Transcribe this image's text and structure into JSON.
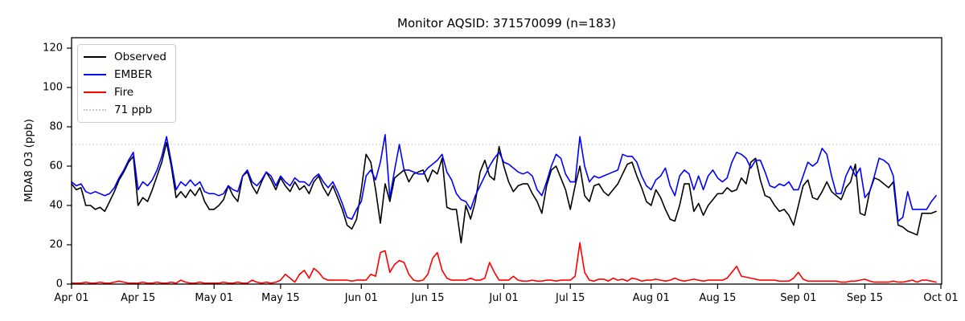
{
  "figure": {
    "title": "Monitor AQSID: 371570099 (n=183)"
  },
  "chart_data": {
    "type": "line",
    "title": "Monitor AQSID: 371570099 (n=183)",
    "xlabel": "",
    "ylabel": "MDA8 O3 (ppb)",
    "ylim": [
      0,
      125
    ],
    "yticks": [
      0,
      20,
      40,
      60,
      80,
      100,
      120
    ],
    "x_tick_labels": [
      "Apr 01",
      "Apr 15",
      "May 01",
      "May 15",
      "Jun 01",
      "Jun 15",
      "Jul 01",
      "Jul 15",
      "Aug 01",
      "Aug 15",
      "Sep 01",
      "Sep 15",
      "Oct 01"
    ],
    "x_tick_positions": [
      0,
      14,
      30,
      44,
      61,
      75,
      91,
      105,
      122,
      136,
      153,
      167,
      183
    ],
    "n_days": 183,
    "grid": false,
    "legend_position": "upper left",
    "threshold": {
      "label": "71 ppb",
      "value": 71,
      "color": "#d3d3d3",
      "style": "dotted"
    },
    "legend": [
      {
        "label": "Observed",
        "color": "#000000",
        "style": "solid"
      },
      {
        "label": "EMBER",
        "color": "#0000ff",
        "style": "solid"
      },
      {
        "label": "Fire",
        "color": "#ff0000",
        "style": "solid"
      },
      {
        "label": "71 ppb",
        "color": "#c9c9c9",
        "style": "dotted"
      }
    ],
    "series": [
      {
        "name": "Observed",
        "color": "#000000",
        "values": [
          51,
          48,
          49,
          40,
          40,
          38,
          39,
          37,
          42,
          47,
          53,
          57,
          62,
          65,
          40,
          44,
          42,
          48,
          55,
          62,
          72,
          60,
          44,
          47,
          44,
          48,
          45,
          49,
          42,
          38,
          38,
          40,
          43,
          50,
          45,
          42,
          55,
          57,
          50,
          46,
          52,
          57,
          53,
          48,
          54,
          50,
          47,
          52,
          48,
          50,
          46,
          52,
          55,
          49,
          45,
          50,
          44,
          38,
          30,
          28,
          33,
          48,
          66,
          62,
          48,
          31,
          51,
          42,
          54,
          56,
          58,
          52,
          56,
          57,
          58,
          52,
          58,
          56,
          64,
          39,
          38,
          38,
          21,
          40,
          33,
          42,
          57,
          63,
          55,
          53,
          70,
          60,
          52,
          47,
          50,
          51,
          51,
          46,
          42,
          36,
          50,
          58,
          60,
          54,
          48,
          38,
          50,
          60,
          45,
          42,
          50,
          51,
          47,
          45,
          48,
          51,
          56,
          61,
          62,
          55,
          49,
          42,
          40,
          48,
          44,
          38,
          33,
          32,
          40,
          51,
          51,
          37,
          41,
          35,
          40,
          43,
          46,
          46,
          49,
          47,
          48,
          54,
          51,
          62,
          64,
          53,
          45,
          44,
          40,
          37,
          38,
          35,
          30,
          40,
          50,
          53,
          44,
          43,
          47,
          52,
          47,
          45,
          43,
          49,
          52,
          61,
          36,
          35,
          47,
          54,
          53,
          51,
          49,
          52,
          30,
          29,
          27,
          26,
          25,
          36,
          36,
          36,
          37
        ]
      },
      {
        "name": "EMBER",
        "color": "#0000ff",
        "values": [
          52,
          50,
          51,
          47,
          46,
          47,
          46,
          45,
          46,
          49,
          54,
          58,
          63,
          67,
          48,
          52,
          50,
          53,
          58,
          65,
          75,
          62,
          48,
          52,
          50,
          53,
          50,
          52,
          47,
          46,
          46,
          45,
          46,
          50,
          48,
          47,
          55,
          58,
          52,
          50,
          53,
          57,
          55,
          50,
          55,
          52,
          50,
          54,
          52,
          52,
          50,
          54,
          56,
          52,
          49,
          52,
          47,
          41,
          34,
          33,
          38,
          42,
          55,
          58,
          53,
          62,
          76,
          44,
          58,
          71,
          58,
          58,
          57,
          56,
          56,
          59,
          61,
          63,
          66,
          57,
          53,
          46,
          43,
          42,
          38,
          45,
          50,
          55,
          60,
          64,
          67,
          62,
          61,
          59,
          57,
          56,
          57,
          55,
          48,
          45,
          52,
          60,
          66,
          64,
          56,
          52,
          52,
          75,
          60,
          52,
          55,
          54,
          55,
          56,
          57,
          58,
          66,
          65,
          65,
          62,
          55,
          50,
          48,
          53,
          55,
          59,
          50,
          45,
          55,
          58,
          56,
          48,
          55,
          48,
          55,
          58,
          54,
          52,
          54,
          62,
          67,
          66,
          64,
          59,
          63,
          63,
          57,
          50,
          49,
          51,
          50,
          52,
          48,
          48,
          55,
          62,
          60,
          62,
          69,
          66,
          55,
          46,
          46,
          55,
          60,
          55,
          59,
          44,
          47,
          55,
          64,
          63,
          61,
          55,
          32,
          34,
          47,
          38,
          38,
          38,
          38,
          42,
          45
        ]
      },
      {
        "name": "Fire",
        "color": "#ff0000",
        "values": [
          0.5,
          0.5,
          0.5,
          1,
          0.5,
          0.5,
          1,
          0.5,
          0.5,
          1,
          1.5,
          1,
          0.5,
          0.5,
          0.5,
          1,
          0.5,
          0.5,
          1,
          0.5,
          0.5,
          1,
          0.5,
          2,
          1,
          0.5,
          0.5,
          1,
          0.5,
          0.5,
          0.5,
          0.5,
          1,
          0.5,
          0.5,
          1,
          0.5,
          0.5,
          2,
          1,
          0.5,
          1,
          0.5,
          1,
          2,
          5,
          3,
          1,
          5,
          7,
          3,
          8,
          6,
          3,
          2,
          2,
          2,
          2,
          2,
          1.5,
          2,
          2,
          2,
          5,
          4,
          16,
          17,
          6,
          10,
          12,
          11,
          5,
          2,
          1.5,
          2,
          5,
          13,
          16,
          7,
          3,
          2,
          2,
          2,
          2,
          3,
          2,
          2,
          3,
          11,
          6,
          2,
          2,
          2,
          4,
          2,
          1.5,
          1.5,
          2,
          1.5,
          1.5,
          2,
          2,
          1.5,
          2,
          2,
          2,
          4,
          21,
          6,
          2,
          1.5,
          2.5,
          2.5,
          1.5,
          3,
          2,
          2.5,
          1.5,
          3,
          2.5,
          1.5,
          2,
          2,
          2.5,
          2,
          1.5,
          2,
          3,
          2,
          1.5,
          2,
          2.5,
          2,
          1.5,
          2,
          2,
          2,
          2,
          3,
          6,
          9,
          4,
          3.5,
          3,
          2.5,
          2,
          2,
          2,
          2,
          1.5,
          1.5,
          1.5,
          3,
          6,
          2.5,
          1.5,
          1.5,
          1.5,
          1.5,
          1.5,
          1.5,
          1.5,
          1,
          1,
          1.5,
          1.5,
          2,
          2.5,
          1.5,
          1,
          1,
          1,
          1,
          1.5,
          1,
          1,
          1.5,
          2,
          1,
          2,
          2,
          1.5,
          1
        ]
      }
    ]
  }
}
